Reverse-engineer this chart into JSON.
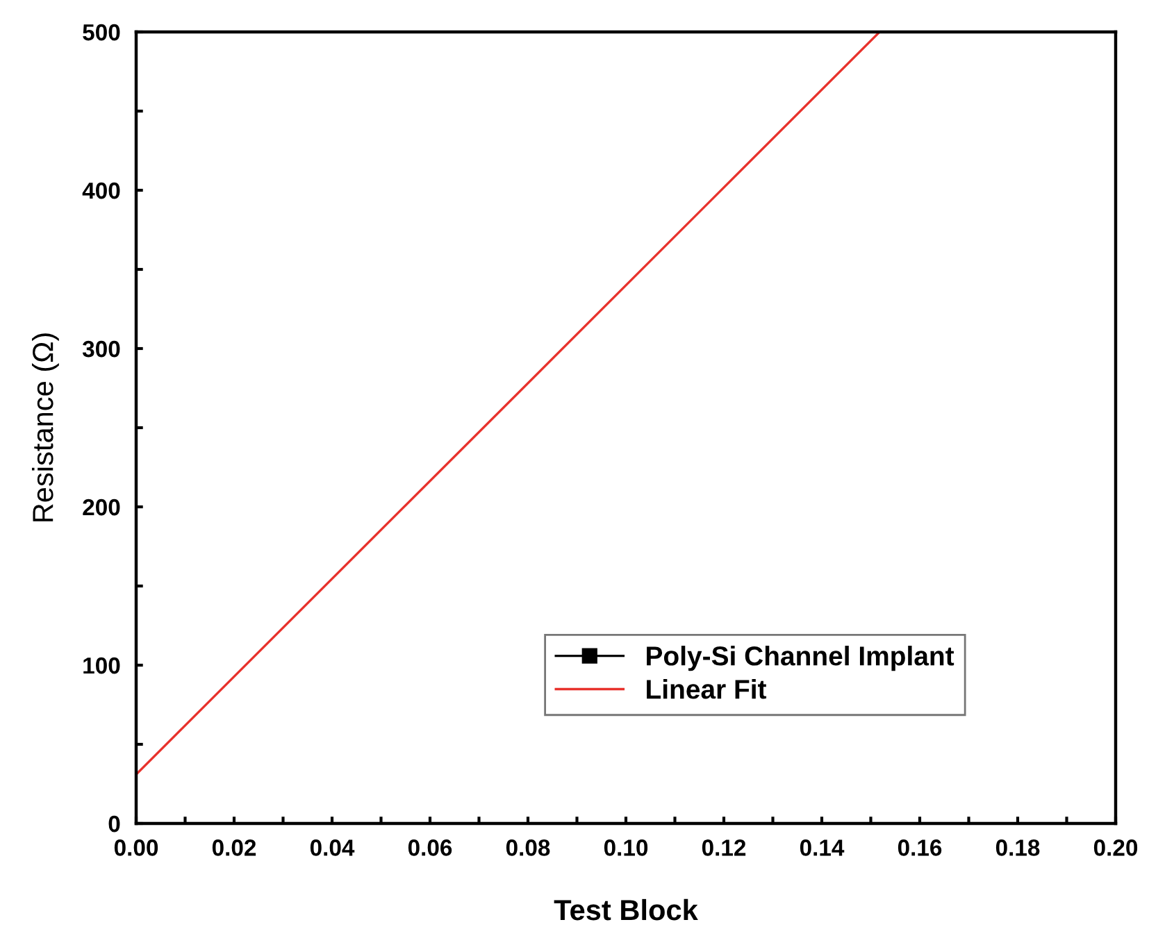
{
  "chart_data": {
    "type": "line",
    "xlabel": "Test Block",
    "ylabel": "Resistance (Ω)",
    "xlim": [
      0,
      0.2
    ],
    "ylim": [
      0,
      500
    ],
    "xticks": [
      {
        "value": 0,
        "label": "0.00"
      },
      {
        "value": 0.01,
        "label": null
      },
      {
        "value": 0.02,
        "label": "0.02"
      },
      {
        "value": 0.03,
        "label": null
      },
      {
        "value": 0.04,
        "label": "0.04"
      },
      {
        "value": 0.05,
        "label": null
      },
      {
        "value": 0.06,
        "label": "0.06"
      },
      {
        "value": 0.07,
        "label": null
      },
      {
        "value": 0.08,
        "label": "0.08"
      },
      {
        "value": 0.09,
        "label": null
      },
      {
        "value": 0.1,
        "label": "0.10"
      },
      {
        "value": 0.11,
        "label": null
      },
      {
        "value": 0.12,
        "label": "0.12"
      },
      {
        "value": 0.13,
        "label": null
      },
      {
        "value": 0.14,
        "label": "0.14"
      },
      {
        "value": 0.15,
        "label": null
      },
      {
        "value": 0.16,
        "label": "0.16"
      },
      {
        "value": 0.17,
        "label": null
      },
      {
        "value": 0.18,
        "label": "0.18"
      },
      {
        "value": 0.19,
        "label": null
      },
      {
        "value": 0.2,
        "label": "0.20"
      }
    ],
    "yticks": [
      0,
      {
        "value": 50,
        "label": null
      },
      100,
      {
        "value": 150,
        "label": null
      },
      200,
      {
        "value": 250,
        "label": null
      },
      300,
      {
        "value": 350,
        "label": null
      },
      400,
      {
        "value": 450,
        "label": null
      },
      500
    ],
    "grid": false,
    "legend": "bottom right",
    "series": [
      {
        "name": "Poly-Si Channel Implant",
        "color": "#000000",
        "marker": "square",
        "line_style": "solid"
      },
      {
        "name": "Linear Fit",
        "color": "#e8322c",
        "marker": "none",
        "line_style": "solid",
        "x": [
          0,
          0.1518
        ],
        "values": [
          31,
          500
        ]
      }
    ]
  }
}
